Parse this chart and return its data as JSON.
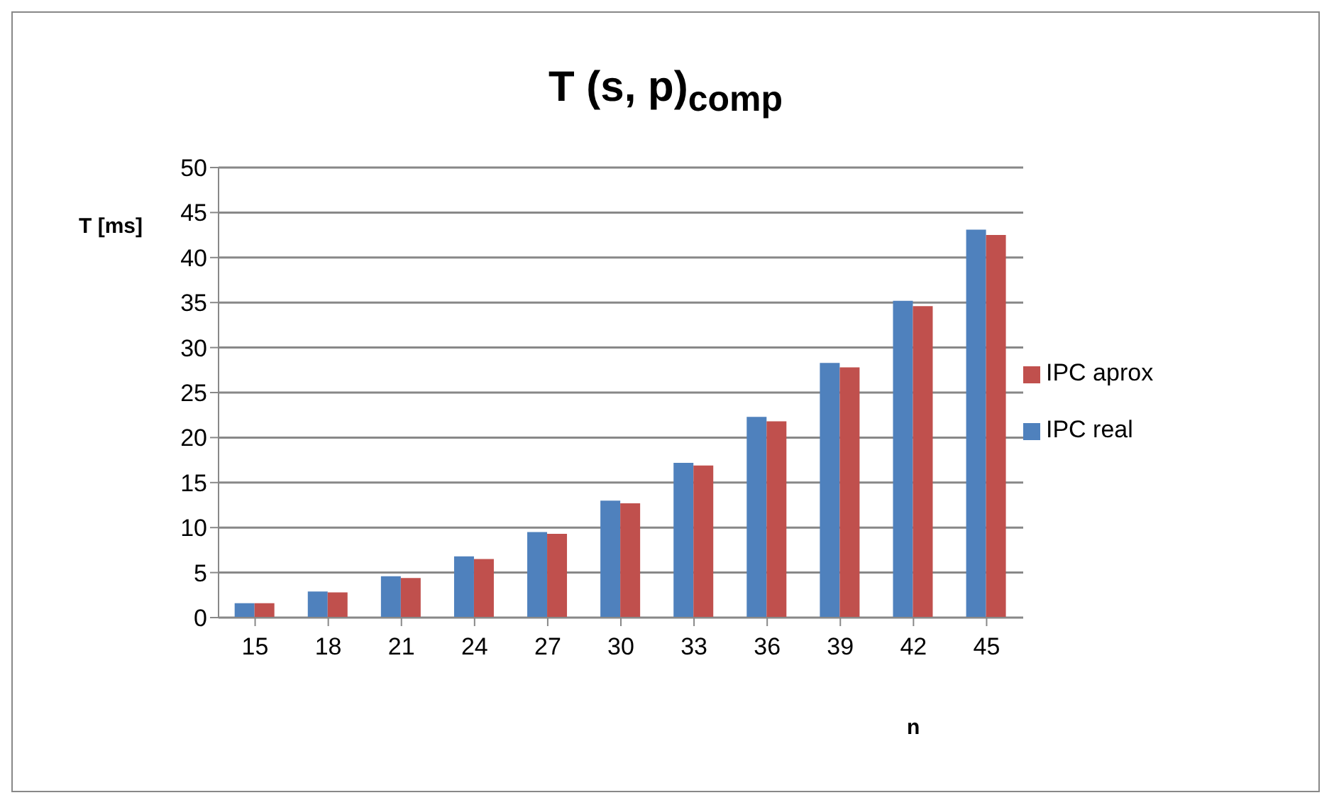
{
  "chart_data": {
    "type": "bar",
    "title": "T (s, p)$_{comp}$",
    "xlabel": "n",
    "ylabel": "T [ms]",
    "categories": [
      "15",
      "18",
      "21",
      "24",
      "27",
      "30",
      "33",
      "36",
      "39",
      "42",
      "45"
    ],
    "series": [
      {
        "name": "IPC real",
        "color": "#4f81bd",
        "values": [
          1.6,
          2.9,
          4.6,
          6.8,
          9.5,
          13.0,
          17.2,
          22.3,
          28.3,
          35.2,
          43.1
        ]
      },
      {
        "name": "IPC aprox",
        "color": "#c0504d",
        "values": [
          1.6,
          2.8,
          4.4,
          6.5,
          9.3,
          12.7,
          16.9,
          21.8,
          27.8,
          34.6,
          42.5
        ]
      }
    ],
    "ylim": [
      0,
      50
    ],
    "yticks": [
      0,
      5,
      10,
      15,
      20,
      25,
      30,
      35,
      40,
      45,
      50
    ],
    "grid": "y",
    "legend": "right"
  }
}
